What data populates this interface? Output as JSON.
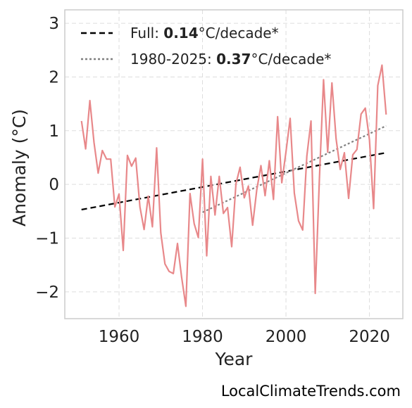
{
  "chart_data": {
    "type": "line",
    "xlabel": "Year",
    "ylabel": "Anomaly (°C)",
    "xlim": [
      1947,
      2028
    ],
    "ylim": [
      -2.5,
      3.25
    ],
    "xticks": [
      1960,
      1980,
      2000,
      2020
    ],
    "yticks": [
      -2,
      -1,
      0,
      1,
      2,
      3
    ],
    "grid": true,
    "legend_position": "top-left",
    "colors": {
      "series": "#e8888a",
      "full_trend": "#000000",
      "recent_trend": "#808080",
      "grid": "#dddddd",
      "frame": "#cccccc"
    },
    "series": [
      {
        "x": [
          1951,
          1952,
          1953,
          1954,
          1955,
          1956,
          1957,
          1958,
          1959,
          1960,
          1961,
          1962,
          1963,
          1964,
          1965,
          1966,
          1967,
          1968,
          1969,
          1970,
          1971,
          1972,
          1973,
          1974,
          1975,
          1976,
          1977,
          1978,
          1979,
          1980,
          1981,
          1982,
          1983,
          1984,
          1985,
          1986,
          1987,
          1988,
          1989,
          1990,
          1991,
          1992,
          1993,
          1994,
          1995,
          1996,
          1997,
          1998,
          1999,
          2000,
          2001,
          2002,
          2003,
          2004,
          2005,
          2006,
          2007,
          2008,
          2009,
          2010,
          2011,
          2012,
          2013,
          2014,
          2015,
          2016,
          2017,
          2018,
          2019,
          2020,
          2021,
          2022,
          2023,
          2024
        ],
        "values": [
          1.18,
          0.66,
          1.56,
          0.78,
          0.21,
          0.63,
          0.47,
          0.47,
          -0.42,
          -0.18,
          -1.23,
          0.54,
          0.34,
          0.49,
          -0.42,
          -0.84,
          -0.22,
          -0.79,
          0.68,
          -0.9,
          -1.48,
          -1.62,
          -1.66,
          -1.1,
          -1.73,
          -2.27,
          -0.17,
          -0.73,
          -0.99,
          0.47,
          -1.33,
          0.15,
          -0.57,
          0.15,
          -0.54,
          -0.43,
          -1.16,
          0.01,
          0.32,
          -0.25,
          -0.03,
          -0.76,
          -0.1,
          0.35,
          -0.21,
          0.44,
          -0.28,
          1.26,
          0.03,
          0.61,
          1.23,
          -0.16,
          -0.68,
          -0.85,
          0.53,
          1.18,
          -2.03,
          0.1,
          1.95,
          0.6,
          1.89,
          0.85,
          0.28,
          0.59,
          -0.26,
          0.55,
          0.65,
          1.31,
          1.42,
          0.83,
          -0.45,
          1.84,
          2.22,
          1.3
        ]
      }
    ],
    "trend_lines": [
      {
        "label_prefix": "Full: ",
        "rate": "0.14",
        "label_suffix": "°C/decade*",
        "style": "dashed",
        "x": [
          1951,
          2024
        ],
        "y": [
          -0.47,
          0.59
        ]
      },
      {
        "label_prefix": "1980-2025: ",
        "rate": "0.37",
        "label_suffix": "°C/decade*",
        "style": "dotted",
        "x": [
          1980,
          2024
        ],
        "y": [
          -0.52,
          1.09
        ]
      }
    ]
  },
  "watermark": "LocalClimateTrends.com"
}
